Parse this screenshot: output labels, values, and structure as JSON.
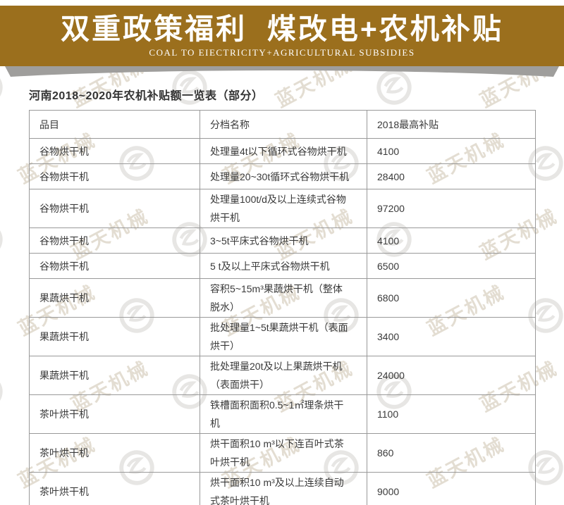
{
  "banner": {
    "title": "双重政策福利  煤改电+农机补贴",
    "subtitle": "COAL TO EIECTRICITY+AGRICULTURAL SUBSIDIES"
  },
  "colors": {
    "banner_bg": "#9b6f1d",
    "banner_fg": "#ffffff",
    "shadow": "#9f9e9c",
    "table_border": "#999999",
    "text": "#3a3a3a",
    "watermark_tan": "#cdc3ae",
    "watermark_gray": "#d4d2ce"
  },
  "table": {
    "title": "河南2018~2020年农机补贴额一览表（部分）",
    "headers": [
      "品目",
      "分档名称",
      "2018最高补贴"
    ],
    "rows": [
      {
        "item": "谷物烘干机",
        "name": "处理量4t以下循环式谷物烘干机",
        "subsidy": "4100",
        "lines": 1
      },
      {
        "item": "谷物烘干机",
        "name": "处理量20~30t循环式谷物烘干机",
        "subsidy": "28400",
        "lines": 1
      },
      {
        "item": "谷物烘干机",
        "name": "处理量100t/d及以上连续式谷物\n烘干机",
        "subsidy": "97200",
        "lines": 2
      },
      {
        "item": "谷物烘干机",
        "name": "3~5t平床式谷物烘干机",
        "subsidy": "4100",
        "lines": 1
      },
      {
        "item": "谷物烘干机",
        "name": "5 t及以上平床式谷物烘干机",
        "subsidy": "6500",
        "lines": 1
      },
      {
        "item": "果蔬烘干机",
        "name": "容积5~15m³果蔬烘干机（整体\n脱水）",
        "subsidy": "6800",
        "lines": 2
      },
      {
        "item": "果蔬烘干机",
        "name": "批处理量1~5t果蔬烘干机（表面\n烘干）",
        "subsidy": "3400",
        "lines": 2
      },
      {
        "item": "果蔬烘干机",
        "name": "批处理量20t及以上果蔬烘干机\n（表面烘干）",
        "subsidy": "24000",
        "lines": 2
      },
      {
        "item": "茶叶烘干机",
        "name": "铁槽面积面积0.5~1㎡理条烘干\n机",
        "subsidy": "1100",
        "lines": 2
      },
      {
        "item": "茶叶烘干机",
        "name": "烘干面积10 m³以下连百叶式茶\n叶烘干机",
        "subsidy": "860",
        "lines": 2
      },
      {
        "item": "茶叶烘干机",
        "name": "烘干面积10 m³及以上连续自动\n式茶叶烘干机",
        "subsidy": "9000",
        "lines": 2
      }
    ]
  },
  "watermark": {
    "text": "蓝天机械"
  }
}
